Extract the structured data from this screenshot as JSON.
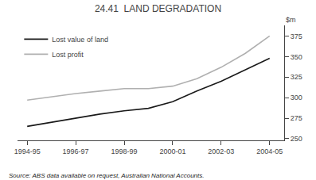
{
  "chart_data": {
    "type": "line",
    "title": "24.41  LAND DEGRADATION",
    "ylabel": "$m",
    "annotations": [
      "Source: ABS data available on request, Australian National Accounts."
    ],
    "x": [
      1994.5,
      1995.5,
      1996.5,
      1997.5,
      1998.5,
      1999.5,
      2000.5,
      2001.5,
      2002.5,
      2003.5,
      2004.5
    ],
    "series": [
      {
        "name": "Lost value of land",
        "color": "#1a1a1a",
        "values": [
          265,
          270,
          275,
          280,
          284,
          287,
          295,
          308,
          320,
          334,
          348
        ]
      },
      {
        "name": "Lost profit",
        "color": "#b0b0b0",
        "values": [
          297,
          301,
          305,
          308,
          311,
          311,
          314,
          323,
          337,
          354,
          375
        ]
      }
    ],
    "xlim": [
      1994.1,
      2005.1
    ],
    "xticks": [
      {
        "value": 1994.5,
        "label": "1994-95"
      },
      {
        "value": 1996.5,
        "label": "1996-97"
      },
      {
        "value": 1998.5,
        "label": "1998-99"
      },
      {
        "value": 2000.5,
        "label": "2000-01"
      },
      {
        "value": 2002.5,
        "label": "2002-03"
      },
      {
        "value": 2004.5,
        "label": "2004-05"
      }
    ],
    "ylim": [
      248,
      388
    ],
    "yticks": [
      250,
      275,
      300,
      325,
      350,
      375
    ],
    "grid": false,
    "legend": "upper left"
  }
}
